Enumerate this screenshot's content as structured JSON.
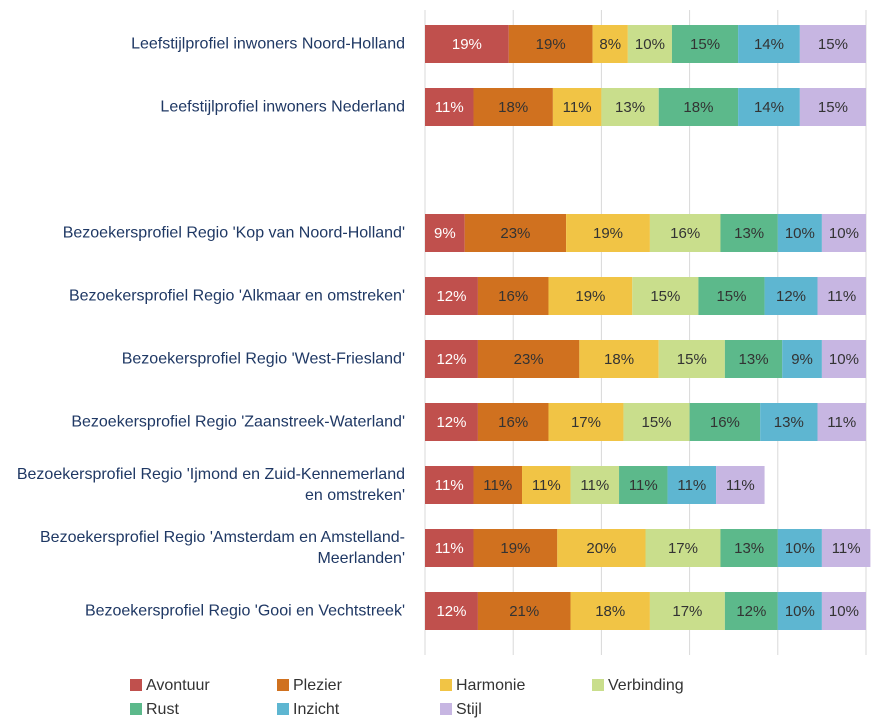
{
  "chart_data": {
    "type": "bar",
    "orientation": "horizontal",
    "stacked": true,
    "categories": [
      "Leefstijlprofiel inwoners Noord-Holland",
      "Leefstijlprofiel inwoners Nederland",
      null,
      "Bezoekersprofiel Regio 'Kop van Noord-Holland'",
      "Bezoekersprofiel Regio 'Alkmaar en omstreken'",
      "Bezoekersprofiel Regio 'West-Friesland'",
      "Bezoekersprofiel Regio 'Zaanstreek-Waterland'",
      "Bezoekersprofiel Regio 'Ijmond en Zuid-Kennemerland en omstreken'",
      "Bezoekersprofiel Regio 'Amsterdam en Amstelland-Meerlanden'",
      "Bezoekersprofiel Regio 'Gooi en Vechtstreek'"
    ],
    "series": [
      {
        "name": "Avontuur",
        "color": "#c0504d",
        "values": [
          19,
          11,
          null,
          9,
          12,
          12,
          12,
          11,
          11,
          12
        ],
        "value_labels": [
          "19%",
          "11%",
          null,
          "9%",
          "12%",
          "12%",
          "12%",
          "11%",
          "11%",
          "12%"
        ]
      },
      {
        "name": "Plezier",
        "color": "#d0711f",
        "values": [
          19,
          18,
          null,
          23,
          16,
          23,
          16,
          11,
          19,
          21
        ],
        "value_labels": [
          "19%",
          "18%",
          null,
          "23%",
          "16%",
          "23%",
          "16%",
          "11%",
          "19%",
          "21%"
        ]
      },
      {
        "name": "Harmonie",
        "color": "#f1c445",
        "values": [
          8,
          11,
          null,
          19,
          19,
          18,
          17,
          11,
          20,
          18
        ],
        "value_labels": [
          "8%",
          "11%",
          null,
          "19%",
          "19%",
          "18%",
          "17%",
          "11%",
          "20%",
          "18%"
        ]
      },
      {
        "name": "Verbinding",
        "color": "#c9de8c",
        "values": [
          10,
          13,
          null,
          16,
          15,
          15,
          15,
          11,
          17,
          17
        ],
        "value_labels": [
          "10%",
          "13%",
          null,
          "16%",
          "15%",
          "15%",
          "15%",
          "11%",
          "17%",
          "17%"
        ]
      },
      {
        "name": "Rust",
        "color": "#5cb98b",
        "values": [
          15,
          18,
          null,
          13,
          15,
          13,
          16,
          11,
          13,
          12
        ],
        "value_labels": [
          "15%",
          "18%",
          null,
          "13%",
          "15%",
          "13%",
          "16%",
          "11%",
          "13%",
          "12%"
        ]
      },
      {
        "name": "Inzicht",
        "color": "#5eb6d1",
        "values": [
          14,
          14,
          null,
          10,
          12,
          9,
          13,
          11,
          10,
          10
        ],
        "value_labels": [
          "14%",
          "14%",
          null,
          "10%",
          "12%",
          "9%",
          "13%",
          "11%",
          "10%",
          "10%"
        ]
      },
      {
        "name": "Stijl",
        "color": "#c7b6e2",
        "values": [
          15,
          15,
          null,
          10,
          11,
          10,
          11,
          11,
          11,
          10
        ],
        "value_labels": [
          "15%",
          "15%",
          null,
          "10%",
          "11%",
          "10%",
          "11%",
          "11%",
          "11%",
          "10%"
        ]
      }
    ],
    "xlim": [
      0,
      100
    ],
    "xticks": [
      0,
      20,
      40,
      60,
      80,
      100
    ],
    "grid": true
  }
}
